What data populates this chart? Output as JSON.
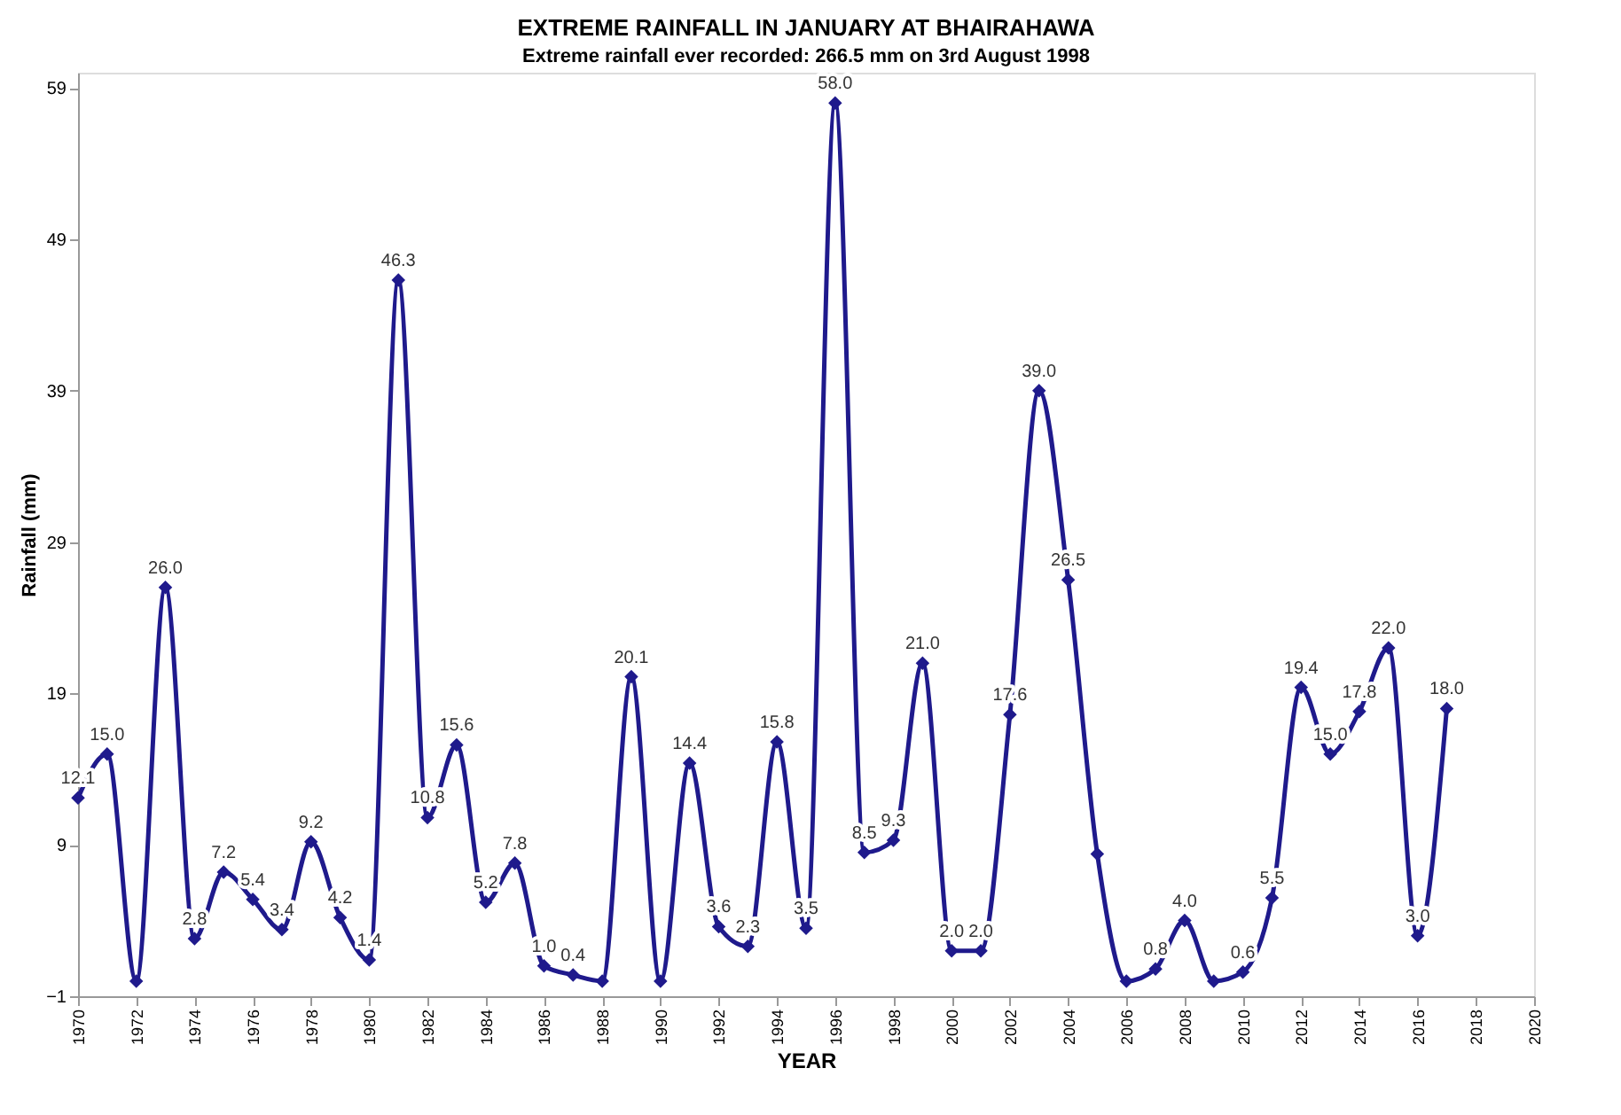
{
  "chart_data": {
    "type": "line",
    "title": "EXTREME RAINFALL IN JANUARY AT BHAIRAHAWA",
    "subtitle": "Extreme rainfall ever recorded: 266.5 mm on 3rd August 1998",
    "xlabel": "YEAR",
    "ylabel": "Rainfall (mm)",
    "x": [
      1970,
      1971,
      1972,
      1973,
      1974,
      1975,
      1976,
      1977,
      1978,
      1979,
      1980,
      1981,
      1982,
      1983,
      1984,
      1985,
      1986,
      1987,
      1988,
      1989,
      1990,
      1991,
      1992,
      1993,
      1994,
      1995,
      1996,
      1997,
      1998,
      1999,
      2000,
      2001,
      2002,
      2003,
      2004,
      2005,
      2006,
      2007,
      2008,
      2009,
      2010,
      2011,
      2012,
      2013,
      2014,
      2015,
      2016,
      2017
    ],
    "series": [
      {
        "color": "#1f1a8c",
        "values": [
          12.1,
          15.0,
          0,
          26.0,
          2.8,
          7.2,
          5.4,
          3.4,
          9.2,
          4.2,
          1.4,
          46.3,
          10.8,
          15.6,
          5.2,
          7.8,
          1.0,
          0.4,
          0,
          20.1,
          0,
          14.4,
          3.6,
          2.3,
          15.8,
          3.5,
          58.0,
          8.5,
          9.3,
          21.0,
          2.0,
          2.0,
          17.6,
          39.0,
          26.5,
          8.4,
          0,
          0.8,
          4.0,
          0,
          0.6,
          5.5,
          19.4,
          15.0,
          17.8,
          22.0,
          3.0,
          18.0
        ],
        "value_labels": [
          "12.1",
          "15.0",
          null,
          "26.0",
          "2.8",
          "7.2",
          "5.4",
          "3.4",
          "9.2",
          "4.2",
          "1.4",
          "46.3",
          "10.8",
          "15.6",
          "5.2",
          "7.8",
          "1.0",
          "0.4",
          null,
          "20.1",
          null,
          "14.4",
          "3.6",
          "2.3",
          "15.8",
          "3.5",
          "58.0",
          "8.5",
          "9.3",
          "21.0",
          "2.0",
          "2.0",
          "17.6",
          "39.0",
          "26.5",
          null,
          null,
          "0.8",
          "4.0",
          null,
          "0.6",
          "5.5",
          "19.4",
          "15.0",
          "17.8",
          "22.0",
          "3.0",
          "18.0"
        ]
      }
    ],
    "xlim": [
      1970,
      2020
    ],
    "xticks": [
      1970,
      1972,
      1974,
      1976,
      1978,
      1980,
      1982,
      1984,
      1986,
      1988,
      1990,
      1992,
      1994,
      1996,
      1998,
      2000,
      2002,
      2004,
      2006,
      2008,
      2010,
      2012,
      2014,
      2016,
      2018,
      2020
    ],
    "ylim": [
      -1,
      60
    ],
    "yticks": [
      -1,
      9,
      19,
      29,
      39,
      49,
      59
    ],
    "marker": "diamond",
    "line_style": "solid",
    "grid": false
  }
}
